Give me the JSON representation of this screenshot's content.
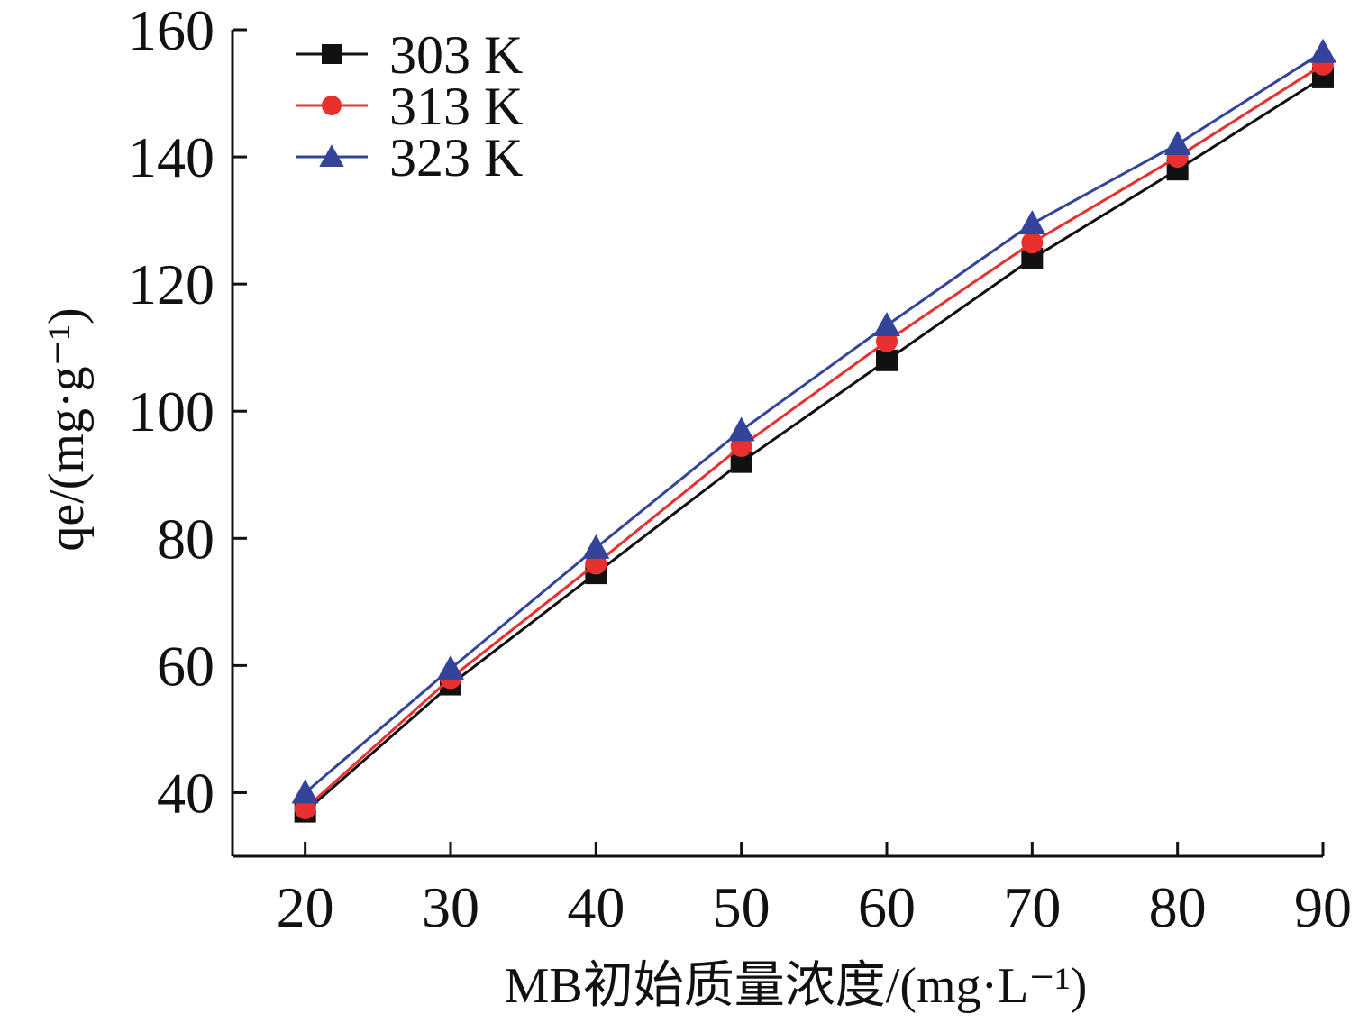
{
  "chart_data": {
    "type": "line",
    "xlabel": "MB初始质量浓度/(mg·L⁻¹)",
    "ylabel": "qe/(mg·g⁻¹)",
    "x": [
      20,
      30,
      40,
      50,
      60,
      70,
      80,
      90
    ],
    "xlim": [
      15,
      90
    ],
    "ylim": [
      30,
      160
    ],
    "xticks": [
      "20",
      "30",
      "40",
      "50",
      "60",
      "70",
      "80",
      "90"
    ],
    "yticks": [
      "40",
      "60",
      "80",
      "100",
      "120",
      "140",
      "160"
    ],
    "grid": false,
    "legend_position": "top-left",
    "series": [
      {
        "name": "303 K",
        "color": "#111111",
        "marker": "square",
        "values": [
          37,
          57,
          74.5,
          92,
          108,
          124,
          138,
          152.5
        ]
      },
      {
        "name": "313 K",
        "color": "#e8302e",
        "marker": "circle",
        "values": [
          37.5,
          58,
          76,
          94.5,
          111,
          126.5,
          140,
          154.5
        ]
      },
      {
        "name": "323 K",
        "color": "#34449a",
        "marker": "triangle",
        "values": [
          40,
          59.5,
          78.5,
          97,
          113.5,
          129.5,
          142,
          156.5
        ]
      }
    ]
  }
}
